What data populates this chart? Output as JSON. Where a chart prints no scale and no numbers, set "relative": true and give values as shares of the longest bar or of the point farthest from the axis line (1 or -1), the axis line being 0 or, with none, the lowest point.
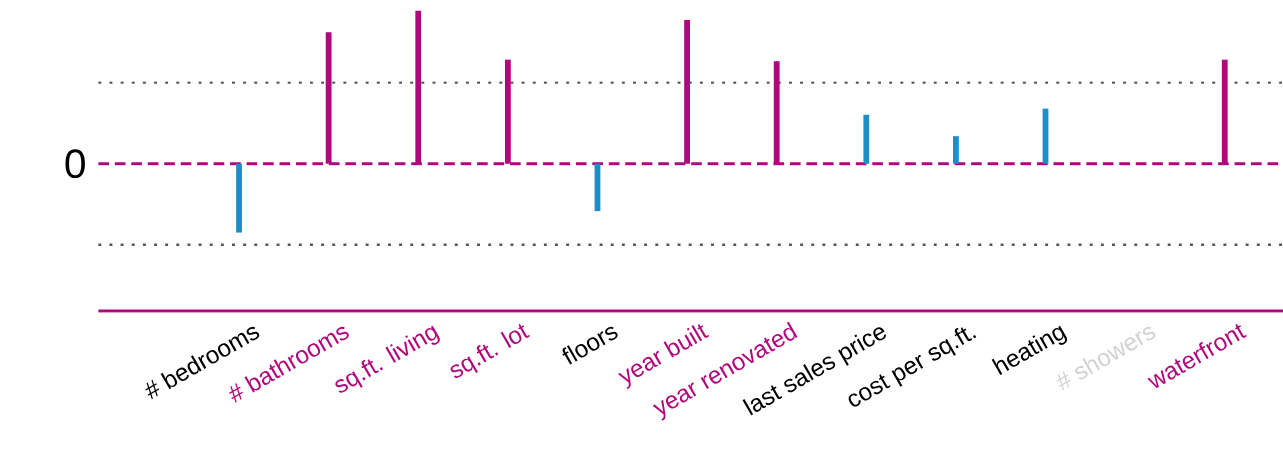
{
  "chart_data": {
    "type": "bar",
    "relative": true,
    "categories": [
      "# bedrooms",
      "# bathrooms",
      "sq.ft. living",
      "sq.ft. lot",
      "floors",
      "year built",
      "year renovated",
      "last sales price",
      "cost per sq.ft.",
      "heating",
      "# showers",
      "waterfront"
    ],
    "values": [
      -0.45,
      0.86,
      1,
      0.68,
      -0.31,
      0.94,
      0.67,
      0.32,
      0.18,
      0.36,
      null,
      0.68
    ],
    "colors": [
      "#1a8fc8",
      "#b0077c",
      "#b0077c",
      "#b0077c",
      "#1a8fc8",
      "#b0077c",
      "#b0077c",
      "#1a8fc8",
      "#1a8fc8",
      "#1a8fc8",
      "#1a8fc8",
      "#b0077c"
    ],
    "ref_lines": [
      {
        "axis": "y",
        "value": 0,
        "label": "0",
        "color": "#b0077c",
        "line_style": "dashed"
      },
      {
        "axis": "y",
        "value": 0.53,
        "color": "#555555",
        "line_style": "dotted"
      },
      {
        "axis": "y",
        "value": -0.53,
        "color": "#555555",
        "line_style": "dotted"
      }
    ]
  }
}
